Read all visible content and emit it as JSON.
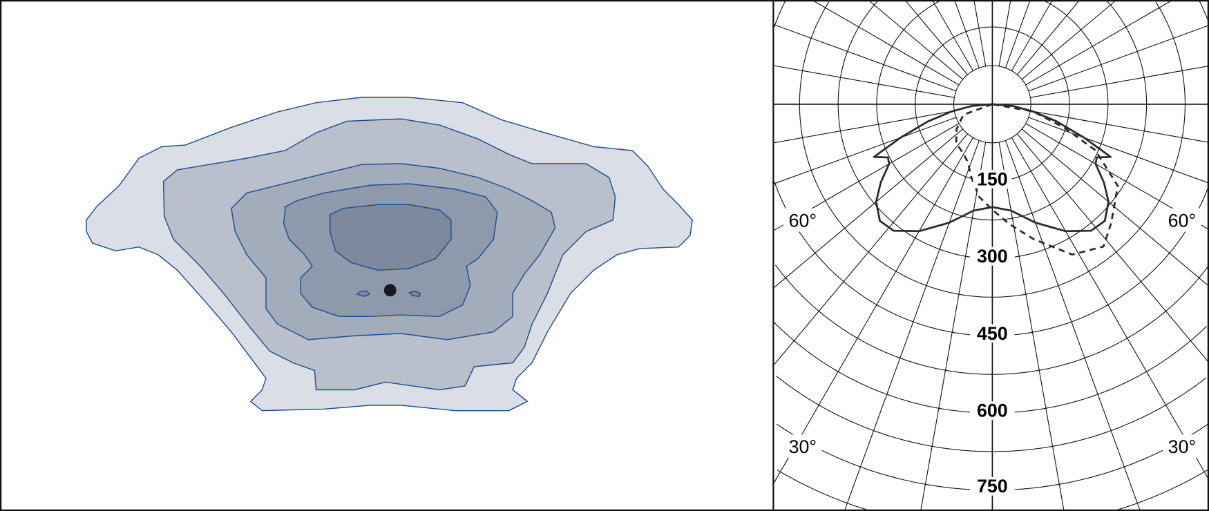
{
  "colors": {
    "contour_fills": [
      "#dadee6",
      "#b9c0cc",
      "#a3acba",
      "#8f99ac",
      "#7d899c"
    ],
    "contour_stroke": "#1f4e8c",
    "grid": "#111111",
    "curve": "#2b2b2b"
  },
  "chart_data": [
    {
      "type": "heatmap",
      "subtype": "isolux contour map",
      "levels": 5,
      "marker": "luminaire position (dot)"
    },
    {
      "type": "line",
      "subtype": "polar",
      "angle_unit": "degrees from nadir",
      "radial_ticks": [
        150,
        300,
        450,
        600,
        750
      ],
      "radial_tick_labels": [
        "150",
        "300",
        "450",
        "600",
        "750"
      ],
      "angle_labels": [
        "60°",
        "60°",
        "30°",
        "30°"
      ],
      "rlim": [
        0,
        900
      ],
      "grid": true,
      "series": [
        {
          "style": "solid",
          "points": [
            [
              -90,
              0
            ],
            [
              -85,
              40
            ],
            [
              -80,
              80
            ],
            [
              -75,
              130
            ],
            [
              -70,
              190
            ],
            [
              -66,
              252
            ],
            [
              -63,
              228
            ],
            [
              -60,
              232
            ],
            [
              -55,
              265
            ],
            [
              -50,
              295
            ],
            [
              -44,
              315
            ],
            [
              -38,
              312
            ],
            [
              -30,
              285
            ],
            [
              -20,
              245
            ],
            [
              -10,
              210
            ],
            [
              0,
              200
            ],
            [
              10,
              210
            ],
            [
              20,
              245
            ],
            [
              30,
              285
            ],
            [
              38,
              312
            ],
            [
              44,
              315
            ],
            [
              50,
              295
            ],
            [
              55,
              265
            ],
            [
              60,
              232
            ],
            [
              63,
              228
            ],
            [
              66,
              252
            ],
            [
              70,
              190
            ],
            [
              75,
              130
            ],
            [
              80,
              80
            ],
            [
              85,
              40
            ],
            [
              90,
              0
            ]
          ]
        },
        {
          "style": "dashed",
          "points": [
            [
              -90,
              0
            ],
            [
              -70,
              60
            ],
            [
              -55,
              85
            ],
            [
              -43,
              103
            ],
            [
              -30,
              112
            ],
            [
              -23,
              122
            ],
            [
              -16,
              148
            ],
            [
              -8,
              182
            ],
            [
              0,
              205
            ],
            [
              8,
              235
            ],
            [
              17,
              274
            ],
            [
              28,
              331
            ],
            [
              38,
              351
            ],
            [
              45,
              327
            ],
            [
              57,
              291
            ],
            [
              66,
              219
            ],
            [
              72,
              147
            ],
            [
              80,
              80
            ],
            [
              90,
              0
            ]
          ]
        }
      ]
    }
  ]
}
